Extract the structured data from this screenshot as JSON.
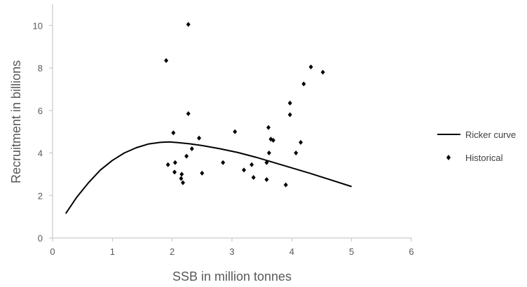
{
  "chart_data": {
    "type": "scatter",
    "title": "",
    "xlabel": "SSB in million tonnes",
    "ylabel": "Recruitment in billions",
    "xlim": [
      0,
      6
    ],
    "ylim": [
      0,
      11
    ],
    "x_ticks": [
      "0",
      "1",
      "2",
      "3",
      "4",
      "5",
      "6"
    ],
    "y_ticks": [
      "0",
      "2",
      "4",
      "6",
      "8",
      "10"
    ],
    "grid": false,
    "legend_position": "right",
    "series": [
      {
        "name": "Ricker curve",
        "kind": "line",
        "color": "#000000",
        "x": [
          0.22,
          0.4,
          0.6,
          0.8,
          1.0,
          1.2,
          1.4,
          1.6,
          1.8,
          1.95,
          2.1,
          2.3,
          2.5,
          2.8,
          3.1,
          3.4,
          3.7,
          4.0,
          4.3,
          4.6,
          5.0
        ],
        "y": [
          1.15,
          1.9,
          2.6,
          3.2,
          3.65,
          4.0,
          4.25,
          4.42,
          4.5,
          4.52,
          4.49,
          4.43,
          4.35,
          4.2,
          4.02,
          3.8,
          3.55,
          3.3,
          3.05,
          2.78,
          2.42
        ]
      },
      {
        "name": "Historical",
        "kind": "scatter",
        "marker": "diamond",
        "color": "#000000",
        "x": [
          1.9,
          2.27,
          2.02,
          2.27,
          2.45,
          2.33,
          2.24,
          1.93,
          2.05,
          2.04,
          2.16,
          2.15,
          2.18,
          2.5,
          2.85,
          3.05,
          3.2,
          3.33,
          3.36,
          3.58,
          3.61,
          3.62,
          3.65,
          3.69,
          3.58,
          3.9,
          3.97,
          3.97,
          4.07,
          4.15,
          4.2,
          4.32,
          4.52
        ],
        "y": [
          8.35,
          10.05,
          4.95,
          5.85,
          4.7,
          4.2,
          3.85,
          3.45,
          3.55,
          3.1,
          3.0,
          2.8,
          2.6,
          3.05,
          3.55,
          5.0,
          3.2,
          3.45,
          2.85,
          3.55,
          5.2,
          4.0,
          4.65,
          4.6,
          2.75,
          2.5,
          6.35,
          5.8,
          4.0,
          4.5,
          7.25,
          8.05,
          7.8
        ]
      }
    ]
  }
}
